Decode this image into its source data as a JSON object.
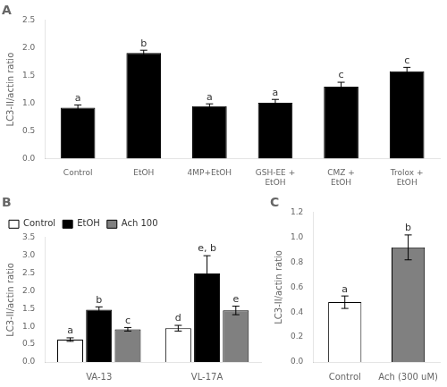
{
  "chart_data": [
    {
      "type": "bar",
      "title": "A",
      "categories": [
        "Control",
        "EtOH",
        "4MP+EtOH",
        "GSH-EE +\nEtOH",
        "CMZ +\nEtOH",
        "Trolox +\nEtOH"
      ],
      "values": [
        0.92,
        1.91,
        0.95,
        1.01,
        1.3,
        1.58
      ],
      "errors": [
        0.05,
        0.05,
        0.04,
        0.06,
        0.08,
        0.07
      ],
      "annotations": [
        "a",
        "b",
        "a",
        "a",
        "c",
        "c"
      ],
      "color": "#000000",
      "ylabel": "LC3-II/actin ratio",
      "ylim": [
        0,
        2.5
      ],
      "yticks": [
        {
          "value": 0,
          "label": "0.0"
        },
        0.5,
        {
          "value": 1,
          "label": "1.0"
        },
        1.5,
        {
          "value": 2,
          "label": "2.0"
        },
        2.5
      ],
      "grid": false
    },
    {
      "type": "bar",
      "title": "B",
      "categories": [
        "VA-13",
        "VL-17A"
      ],
      "series": [
        {
          "name": "Control",
          "color": "#ffffff",
          "values": [
            0.63,
            0.95
          ],
          "errors": [
            0.05,
            0.08
          ],
          "annotations": [
            "a",
            "d"
          ]
        },
        {
          "name": "EtOH",
          "color": "#000000",
          "values": [
            1.47,
            2.49
          ],
          "errors": [
            0.08,
            0.5
          ],
          "annotations": [
            "b",
            "e, b"
          ]
        },
        {
          "name": "Ach 100",
          "color": "#808080",
          "values": [
            0.92,
            1.45
          ],
          "errors": [
            0.05,
            0.12
          ],
          "annotations": [
            "c",
            "e"
          ]
        }
      ],
      "ylabel": "LC3-II/actin ratio",
      "ylim": [
        0,
        3.5
      ],
      "yticks": [
        {
          "value": 0,
          "label": "0.0"
        },
        0.5,
        {
          "value": 1,
          "label": "1.0"
        },
        1.5,
        {
          "value": 2,
          "label": "2.0"
        },
        2.5,
        {
          "value": 3,
          "label": "3.0"
        },
        3.5
      ],
      "legend": "upper left",
      "grid": false
    },
    {
      "type": "bar",
      "title": "C",
      "categories": [
        "Control",
        "Ach (300 uM)"
      ],
      "values": [
        0.48,
        0.92
      ],
      "errors": [
        0.05,
        0.1
      ],
      "annotations": [
        "a",
        "b"
      ],
      "colors": [
        "#ffffff",
        "#808080"
      ],
      "ylabel": "LC3-II/actin ratio",
      "ylim": [
        0,
        1.2
      ],
      "yticks": [
        {
          "value": 0,
          "label": "0.0"
        },
        0.2,
        0.4,
        0.6,
        0.8,
        {
          "value": 1,
          "label": "1.0"
        },
        1.2
      ],
      "grid": false
    }
  ]
}
